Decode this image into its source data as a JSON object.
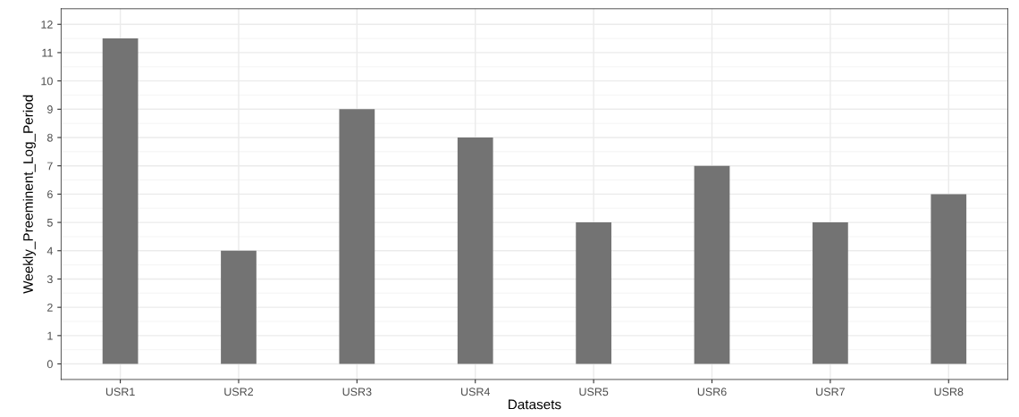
{
  "chart_data": {
    "type": "bar",
    "xlabel": "Datasets",
    "ylabel": "Weekly_Preeminent_Log_Period",
    "categories": [
      "USR1",
      "USR2",
      "USR3",
      "USR4",
      "USR5",
      "USR6",
      "USR7",
      "USR8"
    ],
    "values": [
      11.5,
      4,
      9,
      8,
      5,
      7,
      5,
      6
    ],
    "color": "#737373",
    "ylim": [
      -0.55,
      12.55
    ],
    "yticks": [
      0,
      1,
      2,
      3,
      4,
      5,
      6,
      7,
      8,
      9,
      10,
      11,
      12
    ],
    "grid": true
  }
}
